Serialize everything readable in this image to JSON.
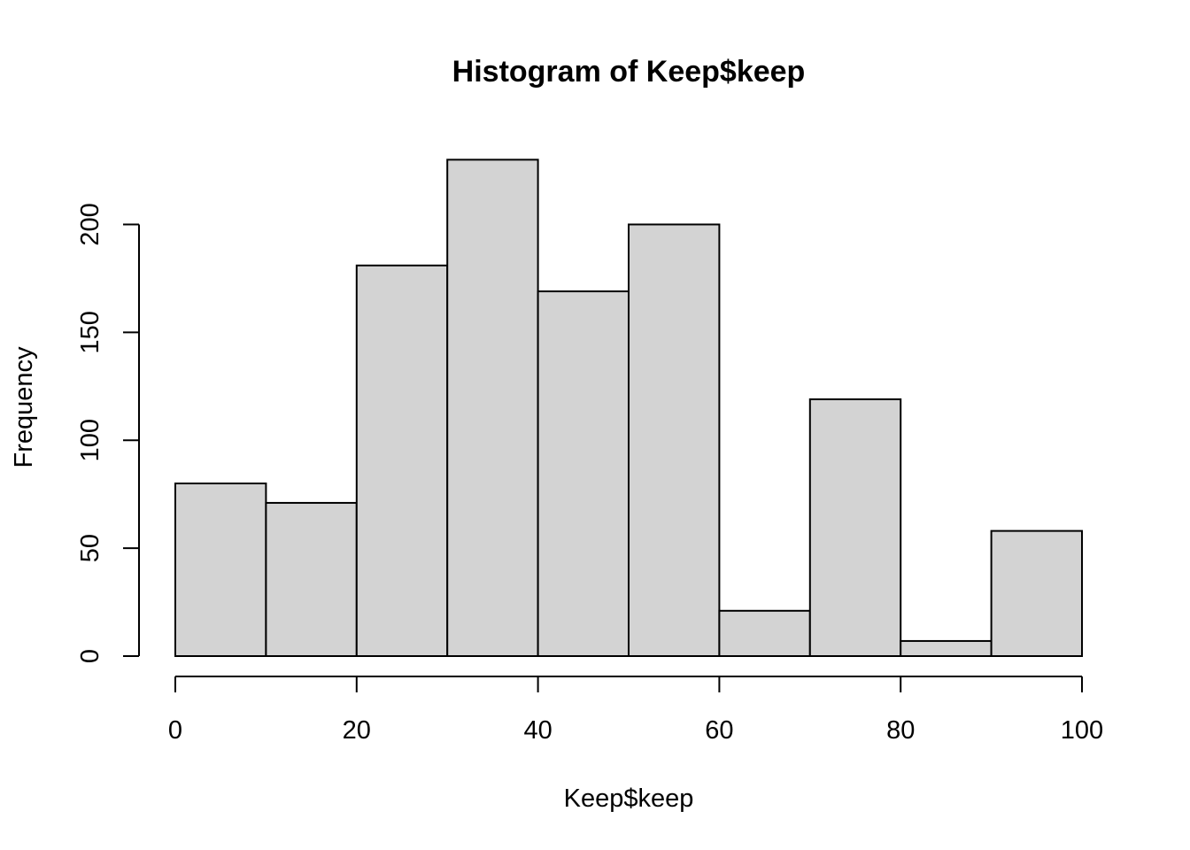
{
  "chart_data": {
    "type": "bar",
    "title": "Histogram of Keep$keep",
    "xlabel": "Keep$keep",
    "ylabel": "Frequency",
    "bins": [
      {
        "start": 0,
        "end": 10,
        "count": 80
      },
      {
        "start": 10,
        "end": 20,
        "count": 71
      },
      {
        "start": 20,
        "end": 30,
        "count": 181
      },
      {
        "start": 30,
        "end": 40,
        "count": 230
      },
      {
        "start": 40,
        "end": 50,
        "count": 169
      },
      {
        "start": 50,
        "end": 60,
        "count": 200
      },
      {
        "start": 60,
        "end": 70,
        "count": 21
      },
      {
        "start": 70,
        "end": 80,
        "count": 119
      },
      {
        "start": 80,
        "end": 90,
        "count": 7
      },
      {
        "start": 90,
        "end": 100,
        "count": 58
      }
    ],
    "xlim": [
      0,
      100
    ],
    "ylim": [
      0,
      230
    ],
    "x_ticks": [
      0,
      20,
      40,
      60,
      80,
      100
    ],
    "y_ticks": [
      0,
      50,
      100,
      150,
      200
    ],
    "bar_color": "#d3d3d3",
    "grid": false
  }
}
